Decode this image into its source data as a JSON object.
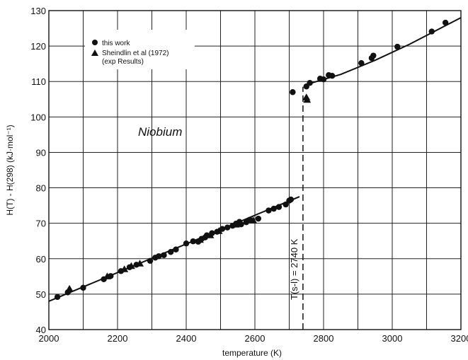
{
  "chart_data": {
    "type": "scatter",
    "title": "",
    "xlabel": "temperature (K)",
    "ylabel": "H(T) - H(298) (kJ·mol⁻¹)",
    "xlim": [
      2000,
      3200
    ],
    "ylim": [
      40,
      130
    ],
    "xticks": [
      2000,
      2200,
      2400,
      2600,
      2800,
      3000,
      3200
    ],
    "yticks": [
      40,
      50,
      60,
      70,
      80,
      90,
      100,
      110,
      120,
      130
    ],
    "grid": true,
    "legend_position": "top-left",
    "element_label": "Niobium",
    "transition_label": "T(s-l) = 2740 K",
    "transition_x": 2740,
    "series": [
      {
        "name": "this work",
        "marker": "circle",
        "points": [
          [
            2025,
            49.2
          ],
          [
            2055,
            50.5
          ],
          [
            2100,
            51.8
          ],
          [
            2160,
            54.2
          ],
          [
            2180,
            55.1
          ],
          [
            2210,
            56.5
          ],
          [
            2235,
            57.6
          ],
          [
            2255,
            58.3
          ],
          [
            2295,
            59.4
          ],
          [
            2310,
            60.3
          ],
          [
            2320,
            60.7
          ],
          [
            2335,
            61.0
          ],
          [
            2355,
            61.9
          ],
          [
            2370,
            62.6
          ],
          [
            2400,
            64.3
          ],
          [
            2420,
            64.9
          ],
          [
            2435,
            64.8
          ],
          [
            2445,
            65.6
          ],
          [
            2455,
            66.0
          ],
          [
            2460,
            66.6
          ],
          [
            2475,
            67.2
          ],
          [
            2490,
            67.6
          ],
          [
            2505,
            68.4
          ],
          [
            2520,
            68.8
          ],
          [
            2535,
            69.3
          ],
          [
            2545,
            69.9
          ],
          [
            2555,
            70.4
          ],
          [
            2560,
            69.7
          ],
          [
            2575,
            70.3
          ],
          [
            2585,
            71.0
          ],
          [
            2610,
            71.3
          ],
          [
            2640,
            73.6
          ],
          [
            2655,
            74.1
          ],
          [
            2670,
            74.6
          ],
          [
            2690,
            75.3
          ],
          [
            2700,
            76.4
          ],
          [
            2705,
            76.7
          ],
          [
            2710,
            107.0
          ],
          [
            2750,
            108.6
          ],
          [
            2760,
            109.6
          ],
          [
            2790,
            110.8
          ],
          [
            2800,
            110.6
          ],
          [
            2815,
            111.8
          ],
          [
            2825,
            111.6
          ],
          [
            2910,
            115.2
          ],
          [
            2940,
            116.6
          ],
          [
            2945,
            117.3
          ],
          [
            3015,
            119.8
          ],
          [
            3115,
            124.1
          ],
          [
            3155,
            126.6
          ]
        ]
      },
      {
        "name": "Sheindlin et al (1972) (exp Results)",
        "marker": "triangle",
        "points": [
          [
            2060,
            51.5
          ],
          [
            2170,
            55.0
          ],
          [
            2220,
            57.0
          ],
          [
            2240,
            57.9
          ],
          [
            2265,
            58.6
          ],
          [
            2440,
            65.3
          ],
          [
            2470,
            66.6
          ],
          [
            2495,
            67.8
          ],
          [
            2545,
            69.6
          ],
          [
            2595,
            70.8
          ],
          [
            2750,
            105.5
          ],
          [
            2752,
            104.8
          ]
        ]
      }
    ],
    "fit_lines": [
      {
        "segment": "solid",
        "points": [
          [
            2000,
            48.0
          ],
          [
            2730,
            77.5
          ]
        ]
      },
      {
        "segment": "liquid",
        "points": [
          [
            2745,
            109.0
          ],
          [
            2780,
            110.0
          ],
          [
            2850,
            112.0
          ],
          [
            2950,
            116.0
          ],
          [
            3050,
            120.5
          ],
          [
            3200,
            128.0
          ]
        ]
      }
    ]
  }
}
